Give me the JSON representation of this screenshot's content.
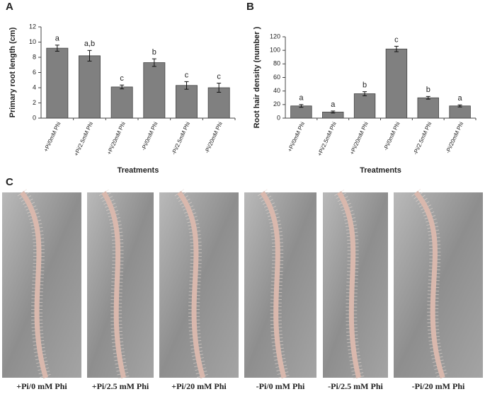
{
  "chart_data": [
    {
      "type": "bar",
      "panel": "A",
      "y_label": "Primary root length (cm)",
      "x_label": "Treatments",
      "categories": [
        "+Pi/0mM Phi",
        "+Pi/2.5mM Phi",
        "+Pi/20mM Phi",
        "-Pi/0mM Phi",
        "-Pi/2.5mM Phi",
        "-Pi/20mM Phi"
      ],
      "values": [
        9.2,
        8.2,
        4.1,
        7.3,
        4.3,
        4.0
      ],
      "errors": [
        0.4,
        0.7,
        0.25,
        0.5,
        0.5,
        0.6
      ],
      "annotations": [
        "a",
        "a,b",
        "c",
        "b",
        "c",
        "c"
      ],
      "color": "#808080",
      "ylim": [
        0,
        12
      ],
      "yticks": [
        0,
        2,
        4,
        6,
        8,
        10,
        12
      ]
    },
    {
      "type": "bar",
      "panel": "B",
      "y_label": "Root hair density (number )",
      "x_label": "Treatments",
      "categories": [
        "+Pi/0mM Phi",
        "+Pi/2.5mM Phi",
        "+Pi/20mM Phi",
        "-Pi/0mM Phi",
        "-Pi/2.5mM Phi",
        "-Pi/20mM Phi"
      ],
      "values": [
        18,
        9,
        36,
        102,
        30,
        18
      ],
      "errors": [
        2,
        1.5,
        3,
        4,
        2,
        1.5
      ],
      "annotations": [
        "a",
        "a",
        "b",
        "c",
        "b",
        "a"
      ],
      "color": "#808080",
      "ylim": [
        0,
        120
      ],
      "yticks": [
        0,
        20,
        40,
        60,
        80,
        100,
        120
      ]
    }
  ],
  "photos": {
    "panel": "C",
    "captions": [
      "+Pi/0 mM Phi",
      "+Pi/2.5 mM Phi",
      "+Pi/20 mM Phi",
      "-Pi/0 mM Phi",
      "-Pi/2.5 mM Phi",
      "-Pi/20 mM Phi"
    ]
  }
}
